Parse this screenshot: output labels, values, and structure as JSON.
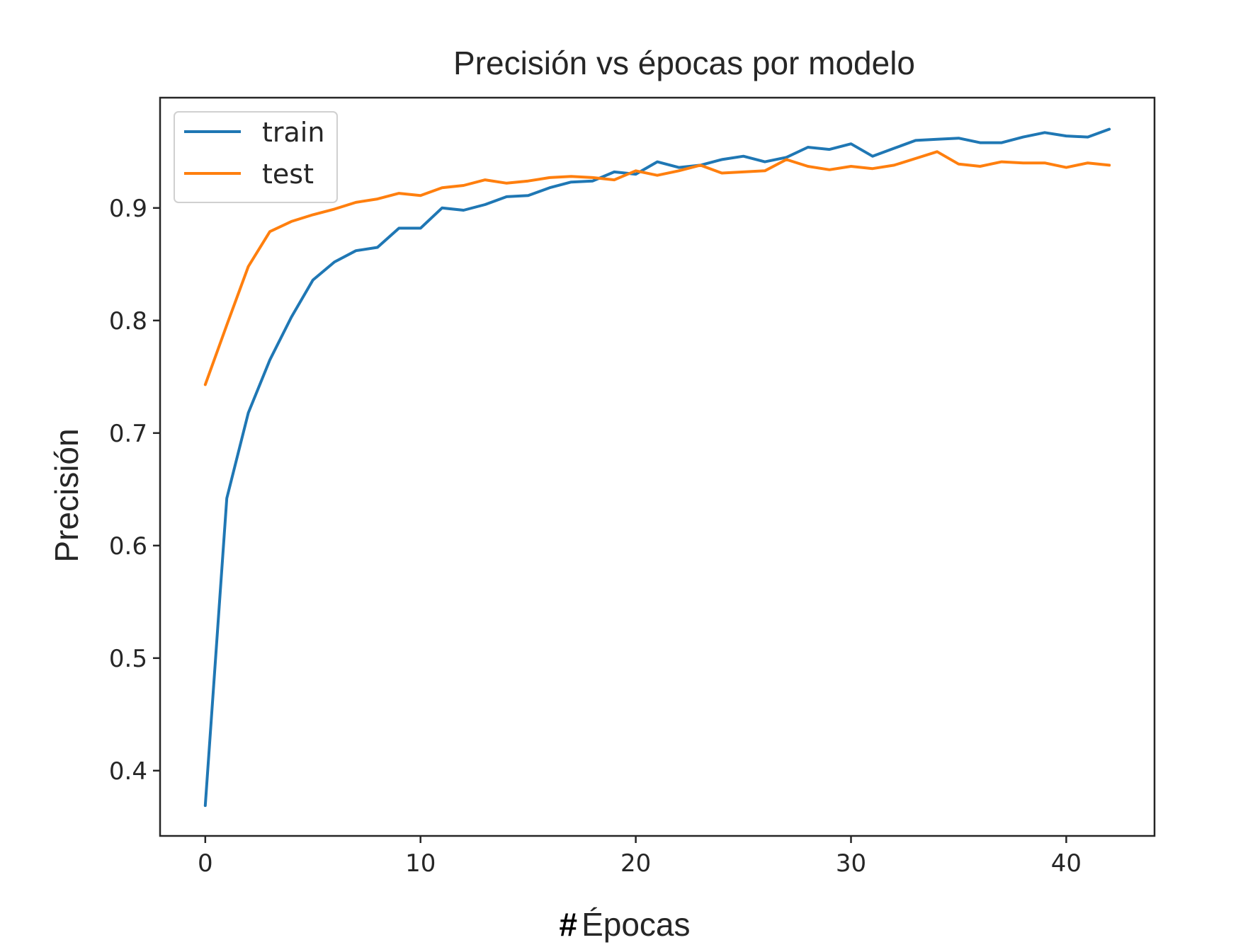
{
  "chart_data": {
    "type": "line",
    "title": "Precisión vs épocas por modelo",
    "xlabel_hash": "#",
    "xlabel": "Épocas",
    "ylabel": "Precisión",
    "xlim": [
      -2.1,
      44.1
    ],
    "ylim": [
      0.342,
      0.998
    ],
    "xticks": [
      0,
      10,
      20,
      30,
      40
    ],
    "xtick_labels": [
      "0",
      "10",
      "20",
      "30",
      "40"
    ],
    "yticks": [
      0.4,
      0.5,
      0.6,
      0.7,
      0.8,
      0.9
    ],
    "ytick_labels": [
      "0.4",
      "0.5",
      "0.6",
      "0.7",
      "0.8",
      "0.9"
    ],
    "legend_position": "top-left",
    "x": [
      0,
      1,
      2,
      3,
      4,
      5,
      6,
      7,
      8,
      9,
      10,
      11,
      12,
      13,
      14,
      15,
      16,
      17,
      18,
      19,
      20,
      21,
      22,
      23,
      24,
      25,
      26,
      27,
      28,
      29,
      30,
      31,
      32,
      33,
      34,
      35,
      36,
      37,
      38,
      39,
      40,
      41,
      42
    ],
    "series": [
      {
        "name": "train",
        "color": "#1f77b4",
        "values": [
          0.369,
          0.642,
          0.718,
          0.765,
          0.803,
          0.836,
          0.852,
          0.862,
          0.865,
          0.882,
          0.882,
          0.9,
          0.898,
          0.903,
          0.91,
          0.911,
          0.918,
          0.923,
          0.924,
          0.932,
          0.93,
          0.941,
          0.936,
          0.938,
          0.943,
          0.946,
          0.941,
          0.945,
          0.954,
          0.952,
          0.957,
          0.946,
          0.953,
          0.96,
          0.961,
          0.962,
          0.958,
          0.958,
          0.963,
          0.967,
          0.964,
          0.963,
          0.97
        ]
      },
      {
        "name": "test",
        "color": "#ff7f0e",
        "values": [
          0.743,
          0.796,
          0.848,
          0.879,
          0.888,
          0.894,
          0.899,
          0.905,
          0.908,
          0.913,
          0.911,
          0.918,
          0.92,
          0.925,
          0.922,
          0.924,
          0.927,
          0.928,
          0.927,
          0.925,
          0.933,
          0.929,
          0.933,
          0.938,
          0.931,
          0.932,
          0.933,
          0.943,
          0.937,
          0.934,
          0.937,
          0.935,
          0.938,
          0.944,
          0.95,
          0.939,
          0.937,
          0.941,
          0.94,
          0.94,
          0.936,
          0.94,
          0.938
        ]
      }
    ]
  }
}
